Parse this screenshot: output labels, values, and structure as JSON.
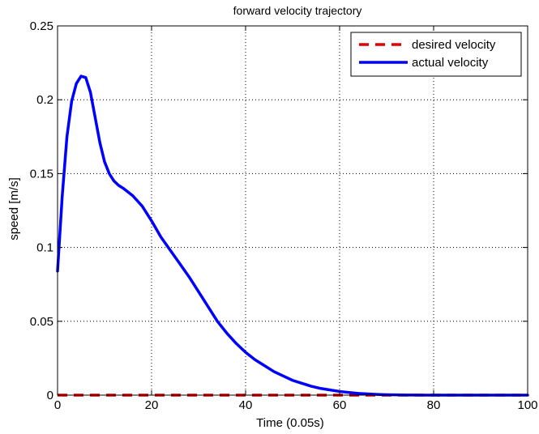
{
  "chart_data": {
    "type": "line",
    "title": "forward velocity trajectory",
    "xlabel": "Time (0.05s)",
    "ylabel": "speed [m/s]",
    "xlim": [
      0,
      100
    ],
    "ylim": [
      0,
      0.25
    ],
    "xticks": [
      0,
      20,
      40,
      60,
      80,
      100
    ],
    "yticks": [
      0,
      0.05,
      0.1,
      0.15,
      0.2,
      0.25
    ],
    "xtick_labels": [
      "0",
      "20",
      "40",
      "60",
      "80",
      "100"
    ],
    "ytick_labels": [
      "0",
      "0.05",
      "0.1",
      "0.15",
      "0.2",
      "0.25"
    ],
    "grid": true,
    "legend_position": "top-right",
    "series": [
      {
        "name": "desired velocity",
        "color": "#e00000",
        "style": "dashed",
        "x": [
          0,
          100
        ],
        "y": [
          0,
          0
        ]
      },
      {
        "name": "actual velocity",
        "color": "#0000ff",
        "style": "solid",
        "x": [
          0,
          1,
          2,
          3,
          4,
          5,
          6,
          7,
          8,
          9,
          10,
          11,
          12,
          13,
          14,
          16,
          18,
          20,
          22,
          24,
          26,
          28,
          30,
          32,
          34,
          36,
          38,
          40,
          42,
          44,
          46,
          48,
          50,
          52,
          54,
          56,
          58,
          60,
          62,
          64,
          66,
          68,
          70,
          72,
          74,
          76,
          78,
          80,
          85,
          90,
          95,
          100
        ],
        "y": [
          0.084,
          0.135,
          0.175,
          0.199,
          0.211,
          0.216,
          0.215,
          0.205,
          0.188,
          0.171,
          0.158,
          0.15,
          0.145,
          0.142,
          0.14,
          0.135,
          0.128,
          0.118,
          0.107,
          0.098,
          0.089,
          0.08,
          0.07,
          0.06,
          0.05,
          0.042,
          0.035,
          0.029,
          0.024,
          0.02,
          0.016,
          0.013,
          0.01,
          0.008,
          0.006,
          0.0045,
          0.0035,
          0.0025,
          0.0018,
          0.0012,
          0.0008,
          0.0005,
          0.0003,
          0.0002,
          0.0001,
          5e-05,
          2e-05,
          0.0,
          0.0,
          0.0,
          0.0,
          0.0
        ]
      }
    ]
  }
}
